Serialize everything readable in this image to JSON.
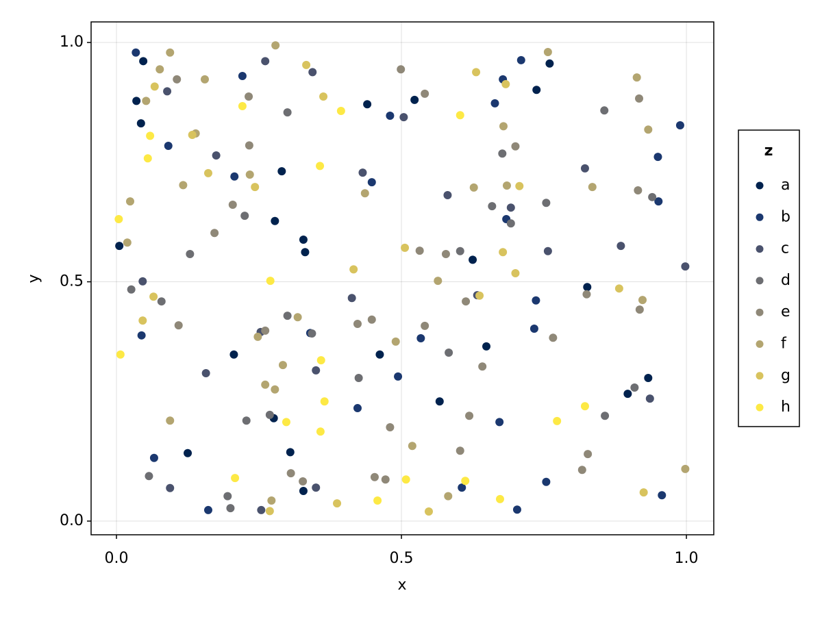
{
  "chart_data": {
    "type": "scatter",
    "x_label": "x",
    "y_label": "y",
    "legend_title": "z",
    "xlim": [
      -0.0445,
      1.048
    ],
    "ylim": [
      -0.0286,
      1.043
    ],
    "xticks": [
      {
        "value": 0,
        "label": "0.0"
      },
      0.5,
      {
        "value": 1,
        "label": "1.0"
      }
    ],
    "yticks": [
      {
        "value": 0,
        "label": "0.0"
      },
      0.5,
      {
        "value": 1,
        "label": "1.0"
      }
    ],
    "grid": true,
    "legend": "right",
    "series": [
      {
        "name": "a",
        "color": "#00224e",
        "x": [
          0.047,
          0.035,
          0.043,
          0.29,
          0.44,
          0.523,
          0.76,
          0.737,
          0.005,
          0.278,
          0.328,
          0.331,
          0.206,
          0.276,
          0.462,
          0.625,
          0.649,
          0.567,
          0.826,
          0.933,
          0.897,
          0.125,
          0.305,
          0.328
        ],
        "y": [
          0.961,
          0.878,
          0.831,
          0.731,
          0.871,
          0.88,
          0.956,
          0.901,
          0.575,
          0.627,
          0.588,
          0.562,
          0.348,
          0.215,
          0.348,
          0.546,
          0.365,
          0.25,
          0.489,
          0.299,
          0.266,
          0.142,
          0.144,
          0.063
        ]
      },
      {
        "name": "b",
        "color": "#1b386f",
        "x": [
          0.034,
          0.091,
          0.221,
          0.207,
          0.448,
          0.48,
          0.664,
          0.678,
          0.71,
          0.95,
          0.989,
          0.951,
          0.684,
          0.044,
          0.34,
          0.423,
          0.494,
          0.534,
          0.672,
          0.736,
          0.733,
          0.754,
          0.957,
          0.066,
          0.161,
          0.606,
          0.703
        ],
        "y": [
          0.979,
          0.784,
          0.93,
          0.72,
          0.708,
          0.847,
          0.873,
          0.923,
          0.963,
          0.761,
          0.827,
          0.668,
          0.631,
          0.388,
          0.393,
          0.236,
          0.302,
          0.382,
          0.207,
          0.461,
          0.402,
          0.082,
          0.054,
          0.132,
          0.023,
          0.07,
          0.024
        ]
      },
      {
        "name": "c",
        "color": "#4a526d",
        "x": [
          0.089,
          0.175,
          0.261,
          0.344,
          0.432,
          0.504,
          0.581,
          0.692,
          0.822,
          0.885,
          0.998,
          0.046,
          0.157,
          0.253,
          0.35,
          0.413,
          0.633,
          0.757,
          0.936,
          0.094,
          0.254,
          0.35
        ],
        "y": [
          0.898,
          0.764,
          0.961,
          0.938,
          0.728,
          0.844,
          0.681,
          0.655,
          0.737,
          0.575,
          0.532,
          0.501,
          0.309,
          0.395,
          0.315,
          0.466,
          0.472,
          0.564,
          0.256,
          0.069,
          0.023,
          0.07
        ]
      },
      {
        "name": "d",
        "color": "#6d6e72",
        "x": [
          0.3,
          0.677,
          0.659,
          0.692,
          0.754,
          0.856,
          0.94,
          0.129,
          0.225,
          0.026,
          0.079,
          0.3,
          0.343,
          0.228,
          0.269,
          0.425,
          0.603,
          0.583,
          0.909,
          0.857,
          0.057,
          0.195,
          0.2
        ],
        "y": [
          0.854,
          0.768,
          0.658,
          0.622,
          0.665,
          0.858,
          0.677,
          0.558,
          0.638,
          0.484,
          0.459,
          0.429,
          0.392,
          0.21,
          0.222,
          0.299,
          0.564,
          0.352,
          0.279,
          0.22,
          0.094,
          0.052,
          0.027
        ]
      },
      {
        "name": "e",
        "color": "#8f8878",
        "x": [
          0.106,
          0.233,
          0.541,
          0.499,
          0.7,
          0.917,
          0.915,
          0.172,
          0.204,
          0.109,
          0.261,
          0.423,
          0.448,
          0.541,
          0.532,
          0.578,
          0.613,
          0.642,
          0.619,
          0.766,
          0.825,
          0.918,
          0.827,
          0.817,
          0.306,
          0.327,
          0.453,
          0.472,
          0.48,
          0.603,
          0.232
        ],
        "y": [
          0.923,
          0.785,
          0.893,
          0.944,
          0.783,
          0.883,
          0.691,
          0.602,
          0.661,
          0.409,
          0.398,
          0.412,
          0.421,
          0.408,
          0.565,
          0.558,
          0.459,
          0.323,
          0.22,
          0.383,
          0.474,
          0.442,
          0.14,
          0.107,
          0.1,
          0.083,
          0.092,
          0.087,
          0.196,
          0.147,
          0.887
        ]
      },
      {
        "name": "f",
        "color": "#b3a570",
        "x": [
          0.094,
          0.076,
          0.052,
          0.024,
          0.117,
          0.155,
          0.139,
          0.279,
          0.234,
          0.436,
          0.757,
          0.679,
          0.627,
          0.685,
          0.835,
          0.913,
          0.933,
          0.019,
          0.248,
          0.318,
          0.292,
          0.261,
          0.278,
          0.094,
          0.49,
          0.564,
          0.923,
          0.998,
          0.272,
          0.519,
          0.582
        ],
        "y": [
          0.979,
          0.944,
          0.878,
          0.668,
          0.702,
          0.923,
          0.81,
          0.994,
          0.724,
          0.685,
          0.98,
          0.825,
          0.697,
          0.701,
          0.698,
          0.927,
          0.818,
          0.582,
          0.385,
          0.426,
          0.326,
          0.285,
          0.275,
          0.21,
          0.375,
          0.502,
          0.462,
          0.109,
          0.043,
          0.157,
          0.052
        ]
      },
      {
        "name": "g",
        "color": "#d8c35e",
        "x": [
          0.067,
          0.133,
          0.161,
          0.243,
          0.333,
          0.363,
          0.631,
          0.683,
          0.707,
          0.065,
          0.046,
          0.416,
          0.506,
          0.637,
          0.678,
          0.7,
          0.882,
          0.925,
          0.269,
          0.387,
          0.548
        ],
        "y": [
          0.908,
          0.807,
          0.727,
          0.698,
          0.953,
          0.887,
          0.938,
          0.913,
          0.7,
          0.469,
          0.419,
          0.526,
          0.571,
          0.471,
          0.562,
          0.518,
          0.486,
          0.06,
          0.021,
          0.037,
          0.02
        ]
      },
      {
        "name": "h",
        "color": "#fde945",
        "x": [
          0.059,
          0.055,
          0.221,
          0.394,
          0.357,
          0.603,
          0.004,
          0.27,
          0.007,
          0.359,
          0.365,
          0.298,
          0.358,
          0.822,
          0.773,
          0.208,
          0.458,
          0.508,
          0.612,
          0.673
        ],
        "y": [
          0.805,
          0.758,
          0.867,
          0.857,
          0.742,
          0.848,
          0.631,
          0.502,
          0.348,
          0.336,
          0.25,
          0.207,
          0.187,
          0.24,
          0.209,
          0.09,
          0.043,
          0.087,
          0.084,
          0.046
        ]
      }
    ]
  }
}
